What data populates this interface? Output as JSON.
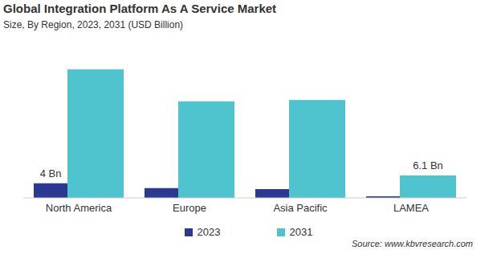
{
  "chart_data": {
    "type": "bar",
    "title": "Global Integration Platform As A Service Market",
    "subtitle": "Size, By Region, 2023, 2031 (USD Billion)",
    "categories": [
      "North America",
      "Europe",
      "Asia Pacific",
      "LAMEA"
    ],
    "series": [
      {
        "name": "2023",
        "color": "#2b3990",
        "values": [
          4,
          2.7,
          2.4,
          0.45
        ],
        "value_labels": [
          "4 Bn",
          null,
          null,
          null
        ]
      },
      {
        "name": "2031",
        "color": "#4fc4cf",
        "values": [
          35,
          26.3,
          26.7,
          6.1
        ],
        "value_labels": [
          null,
          null,
          null,
          "6.1 Bn"
        ]
      }
    ],
    "ylim": [
      0,
      36
    ],
    "data_labels": true,
    "tick_labels": "x",
    "legend": "bottom",
    "source": "Source: www.kbvresearch.com"
  }
}
